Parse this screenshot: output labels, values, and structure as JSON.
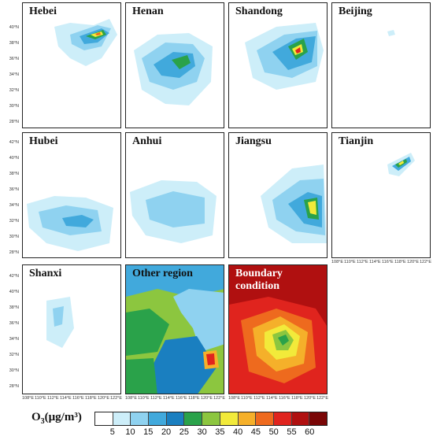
{
  "panels": [
    {
      "title": "Hebei"
    },
    {
      "title": "Henan"
    },
    {
      "title": "Shandong"
    },
    {
      "title": "Beijing"
    },
    {
      "title": "Hubei"
    },
    {
      "title": "Anhui"
    },
    {
      "title": "Jiangsu"
    },
    {
      "title": "Tianjin"
    },
    {
      "title": "Shanxi"
    },
    {
      "title": "Other region"
    },
    {
      "title": "Boundary condition"
    }
  ],
  "lat_labels": [
    "42°N",
    "40°N",
    "38°N",
    "36°N",
    "34°N",
    "32°N",
    "30°N",
    "28°N",
    "26°N"
  ],
  "lon_labels": [
    "108°E",
    "110°E",
    "112°E",
    "114°E",
    "116°E",
    "118°E",
    "120°E",
    "122°E"
  ],
  "colorbar": {
    "title_main": "O",
    "title_sub": "3",
    "title_rest": "(μg/m³)",
    "ticks": [
      "5",
      "10",
      "15",
      "20",
      "25",
      "30",
      "35",
      "40",
      "45",
      "50",
      "55",
      "60"
    ],
    "colors": [
      "#ffffff",
      "#cdeef9",
      "#8fd2f0",
      "#41a9dc",
      "#1a7fc0",
      "#2aa24a",
      "#8cc63f",
      "#f2ea3a",
      "#f5b02a",
      "#ee6a1e",
      "#e0241e",
      "#b01010",
      "#7a0606"
    ]
  }
}
